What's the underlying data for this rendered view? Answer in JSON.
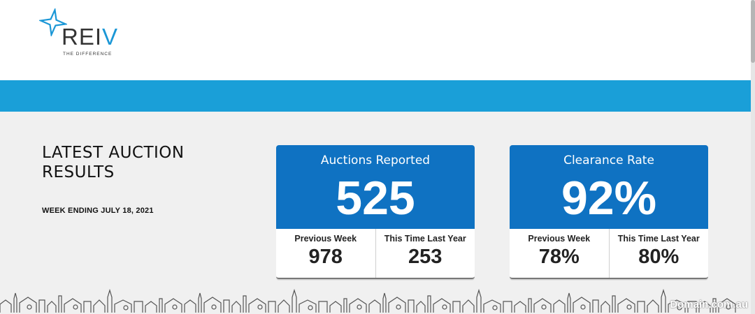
{
  "brand": {
    "name_main": "REI",
    "name_accent": "V",
    "tagline": "THE DIFFERENCE",
    "accent_color": "#1b97d6",
    "band_color": "#1a9fd8",
    "card_color": "#0f72c2"
  },
  "section": {
    "title_line1": "LATEST AUCTION",
    "title_line2": "RESULTS",
    "week_ending": "WEEK ENDING JULY 18, 2021"
  },
  "cards": [
    {
      "label": "Auctions Reported",
      "value": "525",
      "stats": [
        {
          "label": "Previous Week",
          "value": "978"
        },
        {
          "label": "This Time Last Year",
          "value": "253"
        }
      ]
    },
    {
      "label": "Clearance Rate",
      "value": "92%",
      "stats": [
        {
          "label": "Previous Week",
          "value": "78%"
        },
        {
          "label": "This Time Last Year",
          "value": "80%"
        }
      ]
    }
  ],
  "decor": {
    "skyline_icon": "city-skyline-illustration",
    "logo_icon": "reiv-star-icon"
  },
  "watermark": "Domain.com.au"
}
